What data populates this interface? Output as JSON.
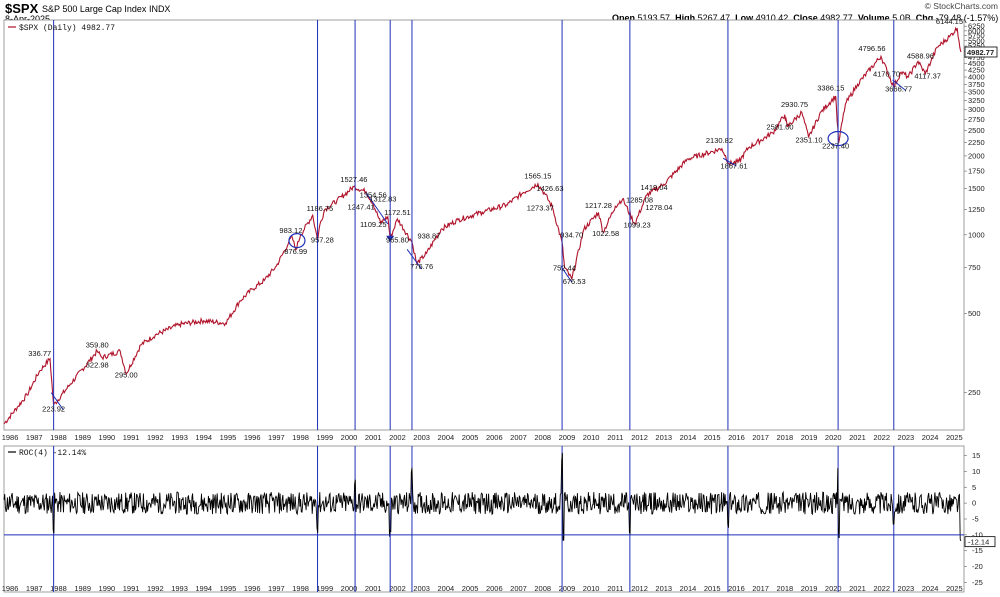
{
  "header": {
    "ticker": "$SPX",
    "name": "S&P 500 Large Cap Index",
    "exchange": "INDX",
    "date": "8-Apr-2025",
    "open_label": "Open",
    "open": "5193.57",
    "high_label": "High",
    "high": "5267.47",
    "low_label": "Low",
    "low": "4910.42",
    "close_label": "Close",
    "close": "4982.77",
    "volume_label": "Volume",
    "volume": "5.0B",
    "chg_label": "Chg",
    "chg": "-79.48 (-1.57%)",
    "copyright": "© StockCharts.com"
  },
  "colors": {
    "price_line": "#b0132a",
    "vline": "#1f2fb8",
    "roc": "#000000",
    "last_box": "#000000"
  },
  "chart_data": [
    {
      "type": "line",
      "legend": "$SPX (Daily) 4982.77",
      "scale": "log",
      "ylim": [
        180,
        6600
      ],
      "yticks": [
        250,
        500,
        750,
        1000,
        1250,
        1500,
        1750,
        2000,
        2250,
        2500,
        2750,
        3000,
        3250,
        3500,
        3750,
        4000,
        4250,
        4500,
        4750,
        5000,
        5250,
        5500,
        5750,
        6000,
        6250
      ],
      "x_years": [
        "1986",
        "1987",
        "1988",
        "1989",
        "1990",
        "1991",
        "1992",
        "1993",
        "1994",
        "1995",
        "1996",
        "1997",
        "1998",
        "1999",
        "2000",
        "2001",
        "2002",
        "2003",
        "2004",
        "2005",
        "2006",
        "2007",
        "2008",
        "2009",
        "2010",
        "2011",
        "2012",
        "2013",
        "2014",
        "2015",
        "2016",
        "2017",
        "2018",
        "2019",
        "2020",
        "2021",
        "2022",
        "2023",
        "2024",
        "2025"
      ],
      "xlim": [
        1985.75,
        2025.4
      ],
      "last_value": "4982.77",
      "series": [
        {
          "x": [
            1985.75,
            1986.3,
            1986.7,
            1987.2,
            1987.65,
            1987.8,
            1988.5,
            1989.6,
            1989.8,
            1990.55,
            1990.8,
            1991.4,
            1992.0,
            1993.0,
            1994.0,
            1994.9,
            1995.5,
            1996.0,
            1996.5,
            1997.0,
            1997.5,
            1997.65,
            1997.8,
            1998.0,
            1998.5,
            1998.7,
            1998.8,
            1999.0,
            1999.5,
            1999.8,
            2000.2,
            2000.7,
            2001.0,
            2001.3,
            2001.6,
            2001.7,
            2002.0,
            2002.6,
            2002.8,
            2003.2,
            2003.8,
            2004.5,
            2005.5,
            2006.5,
            2007.2,
            2007.8,
            2008.1,
            2008.4,
            2008.8,
            2008.9,
            2009.2,
            2009.7,
            2010.3,
            2010.5,
            2011.0,
            2011.3,
            2011.8,
            2012.3,
            2013.0,
            2014.0,
            2015.4,
            2015.7,
            2016.1,
            2016.5,
            2017.5,
            2018.0,
            2018.1,
            2018.7,
            2018.98,
            2019.5,
            2020.1,
            2020.22,
            2020.5,
            2021.0,
            2021.97,
            2022.5,
            2022.8,
            2023.1,
            2023.5,
            2023.8,
            2024.3,
            2024.8,
            2025.12,
            2025.27
          ],
          "values": [
            190,
            220,
            245,
            300,
            336.77,
            223.92,
            270,
            359.8,
            340,
            360,
            295,
            380,
            415,
            455,
            470,
            460,
            560,
            620,
            670,
            760,
            930,
            983.12,
            876.99,
            1000,
            1186.75,
            957.28,
            1100,
            1250,
            1350,
            1420,
            1527.46,
            1460,
            1312.83,
            1109.25,
            1172.51,
            965.8,
            1150,
            938.87,
            776.76,
            850,
            1050,
            1140,
            1220,
            1300,
            1450,
            1565.15,
            1426.63,
            1273.37,
            934.7,
            752.44,
            676.53,
            1050,
            1217.28,
            1022.58,
            1285.08,
            1370,
            1099.23,
            1419.04,
            1560,
            1950,
            2130.82,
            1867.61,
            1900,
            2150,
            2450,
            2872,
            2581.0,
            2930.75,
            2351.1,
            2950,
            3386.15,
            2237.4,
            3150,
            3750,
            4796.56,
            3666.77,
            4170.7,
            4000,
            4588.96,
            4117.37,
            5200,
            5700,
            6144.15,
            4982.77
          ],
          "name": "$SPX"
        }
      ],
      "annotations": [
        "336.77",
        "223.92",
        "359.80",
        "322.98",
        "295.00",
        "983.12",
        "876.99",
        "1186.75",
        "957.28",
        "1354.56",
        "1247.41",
        "1527.46",
        "1312.83",
        "1109.25",
        "1172.51",
        "965.80",
        "938.87",
        "776.76",
        "1565.15",
        "1426.63",
        "1273.37",
        "934.70",
        "752.44",
        "676.53",
        "1217.28",
        "1022.58",
        "1285.08",
        "1419.04",
        "1278.04",
        "1099.23",
        "2130.82",
        "1867.61",
        "2581.00",
        "2930.75",
        "2351.10",
        "3386.15",
        "2237.40",
        "4796.56",
        "4170.70",
        "3666.77",
        "4588.96",
        "4117.37",
        "6144.15"
      ],
      "highlight_dates": [
        1987.8,
        1998.7,
        2000.25,
        2001.7,
        2002.6,
        2008.8,
        2011.6,
        2015.65,
        2020.2,
        2022.5
      ]
    },
    {
      "type": "line",
      "legend": "ROC(4) -12.14%",
      "ylim": [
        -28,
        18
      ],
      "yticks": [
        15,
        10,
        5,
        0,
        -5,
        -10,
        -15,
        -20,
        -25
      ],
      "hline": -10,
      "last_value": "-12.14",
      "x_years": [
        "1986",
        "1987",
        "1988",
        "1989",
        "1990",
        "1991",
        "1992",
        "1993",
        "1994",
        "1995",
        "1996",
        "1997",
        "1998",
        "1999",
        "2000",
        "2001",
        "2002",
        "2003",
        "2004",
        "2005",
        "2006",
        "2007",
        "2008",
        "2009",
        "2010",
        "2011",
        "2012",
        "2013",
        "2014",
        "2015",
        "2016",
        "2017",
        "2018",
        "2019",
        "2020",
        "2021",
        "2022",
        "2023",
        "2024",
        "2025"
      ],
      "spikes": [
        {
          "x": 1987.8,
          "value": -12
        },
        {
          "x": 1998.7,
          "value": -11
        },
        {
          "x": 2000.25,
          "value": 8
        },
        {
          "x": 2001.7,
          "value": -11
        },
        {
          "x": 2002.6,
          "value": 13
        },
        {
          "x": 2008.8,
          "value": 17
        },
        {
          "x": 2008.85,
          "value": -15
        },
        {
          "x": 2011.6,
          "value": -10
        },
        {
          "x": 2015.65,
          "value": -9
        },
        {
          "x": 2020.2,
          "value": 14
        },
        {
          "x": 2020.22,
          "value": -14
        },
        {
          "x": 2022.5,
          "value": -8
        },
        {
          "x": 2025.27,
          "value": -12.14
        }
      ],
      "name": "ROC(4)"
    }
  ]
}
